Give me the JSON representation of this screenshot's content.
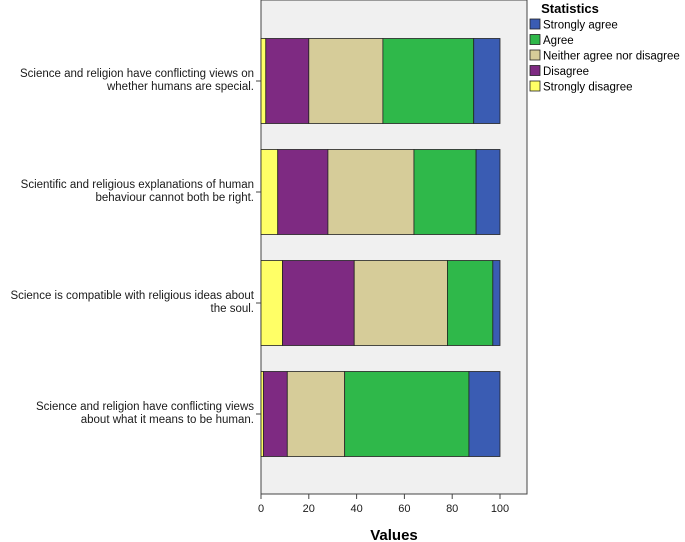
{
  "chart_data": {
    "type": "bar",
    "orientation": "horizontal",
    "stacked": true,
    "xlabel": "Values",
    "ylabel": "",
    "xlim": [
      0,
      110
    ],
    "xticks": [
      0,
      20,
      40,
      60,
      80,
      100
    ],
    "categories": [
      [
        "Science and religion have conflicting views on",
        "whether humans are special."
      ],
      [
        "Scientific and religious explanations of human",
        "behaviour cannot both be right."
      ],
      [
        "Science is compatible with religious ideas about",
        "the soul."
      ],
      [
        "Science and religion have conflicting views",
        "about what it means to be human."
      ]
    ],
    "legend": {
      "title": "Statistics",
      "position": "top-right"
    },
    "series": [
      {
        "name": "Strongly disagree",
        "color": "#ffff66",
        "values": [
          2,
          7,
          9,
          1
        ]
      },
      {
        "name": "Disagree",
        "color": "#7e2a82",
        "values": [
          18,
          21,
          30,
          10
        ]
      },
      {
        "name": "Neither agree nor disagree",
        "color": "#d6cc99",
        "values": [
          31,
          36,
          39,
          24
        ]
      },
      {
        "name": "Agree",
        "color": "#2fb84a",
        "values": [
          38,
          26,
          19,
          52
        ]
      },
      {
        "name": "Strongly agree",
        "color": "#3a5cb3",
        "values": [
          11,
          10,
          3,
          13
        ]
      }
    ],
    "legend_order": [
      "Strongly agree",
      "Agree",
      "Neither agree nor disagree",
      "Disagree",
      "Strongly disagree"
    ],
    "grid": false
  }
}
